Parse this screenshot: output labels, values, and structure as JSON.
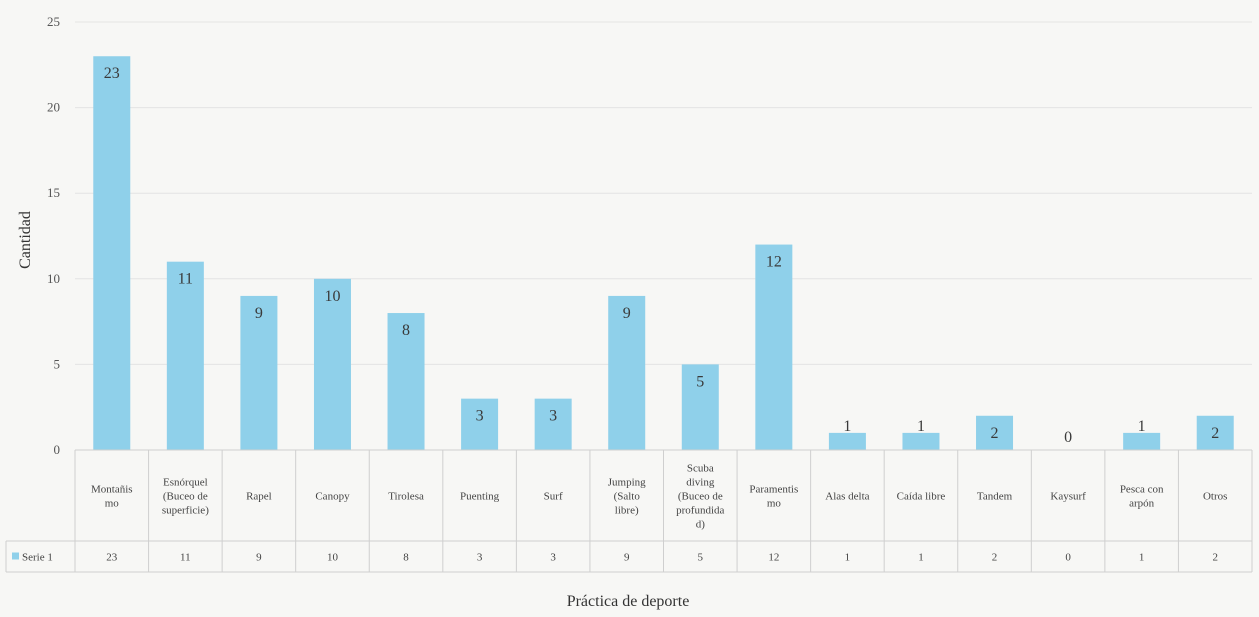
{
  "chart_data": {
    "type": "bar",
    "ylabel": "Cantidad",
    "xlabel": "Práctica de deporte",
    "ylim": [
      0,
      25
    ],
    "yticks": [
      0,
      5,
      10,
      15,
      20,
      25
    ],
    "grid": true,
    "legend_placement": "left of data table",
    "bar_color": "#8fd0ea",
    "categories": [
      [
        "Montañis",
        "mo"
      ],
      [
        "Esnórquel",
        "(Buceo de",
        "superficie)"
      ],
      [
        "Rapel"
      ],
      [
        "Canopy"
      ],
      [
        "Tirolesa"
      ],
      [
        "Puenting"
      ],
      [
        "Surf"
      ],
      [
        "Jumping",
        "(Salto",
        "libre)"
      ],
      [
        "Scuba",
        "diving",
        "(Buceo de",
        "profundida",
        "d)"
      ],
      [
        "Paramentis",
        "mo"
      ],
      [
        "Alas delta"
      ],
      [
        "Caída libre"
      ],
      [
        "Tandem"
      ],
      [
        "Kaysurf"
      ],
      [
        "Pesca con",
        "arpón"
      ],
      [
        "Otros"
      ]
    ],
    "series": [
      {
        "name": "Serie 1",
        "values": [
          23,
          11,
          9,
          10,
          8,
          3,
          3,
          9,
          5,
          12,
          1,
          1,
          2,
          0,
          1,
          2
        ]
      }
    ]
  }
}
